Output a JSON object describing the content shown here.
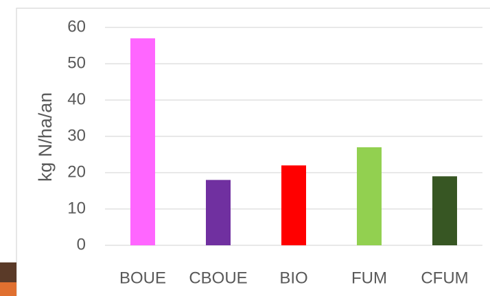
{
  "chart_data": {
    "type": "bar",
    "y_label": "kg N/ha/an",
    "categories": [
      "BOUE",
      "CBOUE",
      "BIO",
      "FUM",
      "CFUM"
    ],
    "values": [
      57,
      18,
      22,
      27,
      19
    ],
    "colors": [
      "#ff66ff",
      "#7030a0",
      "#ff0000",
      "#92d050",
      "#375623"
    ],
    "ylim": [
      0,
      60
    ],
    "yticks": [
      0,
      10,
      20,
      30,
      40,
      50,
      60
    ],
    "grid": true
  }
}
